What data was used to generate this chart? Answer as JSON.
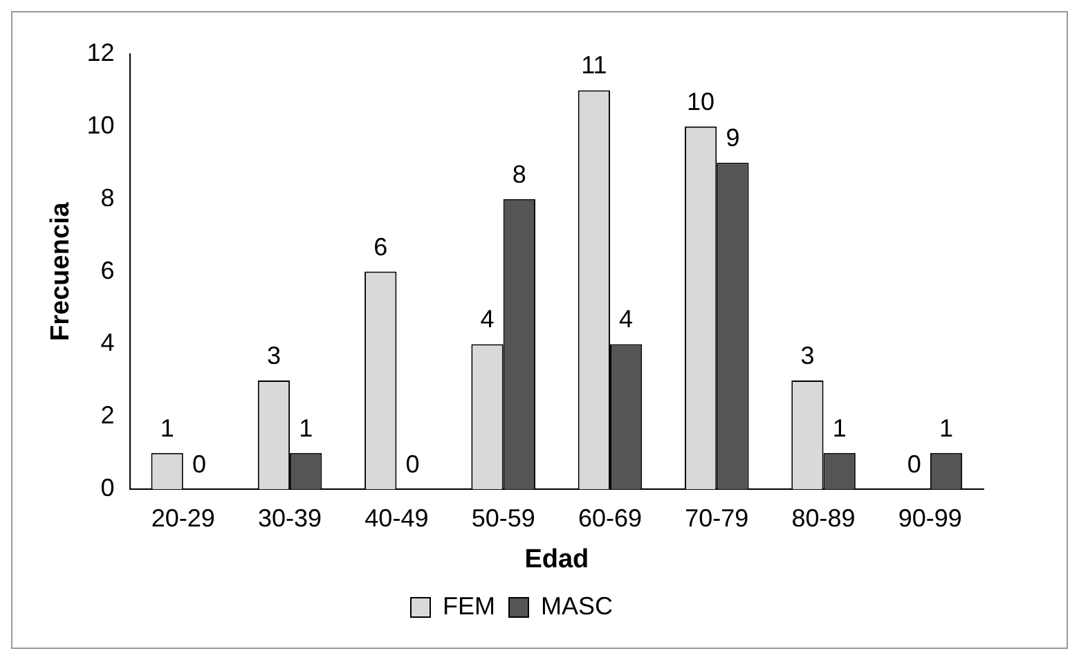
{
  "chart_data": {
    "type": "bar",
    "xlabel": "Edad",
    "ylabel": "Frecuencia",
    "categories": [
      "20-29",
      "30-39",
      "40-49",
      "50-59",
      "60-69",
      "70-79",
      "80-89",
      "90-99"
    ],
    "series": [
      {
        "name": "FEM",
        "color": "#d9d9d9",
        "values": [
          1,
          3,
          6,
          4,
          11,
          10,
          3,
          0
        ]
      },
      {
        "name": "MASC",
        "color": "#555555",
        "values": [
          0,
          1,
          0,
          8,
          4,
          9,
          1,
          1
        ]
      }
    ],
    "ylim": [
      0,
      12
    ],
    "yticks": [
      0,
      2,
      4,
      6,
      8,
      10,
      12
    ],
    "grid": false,
    "legend": "bottom",
    "data_labels": true
  }
}
